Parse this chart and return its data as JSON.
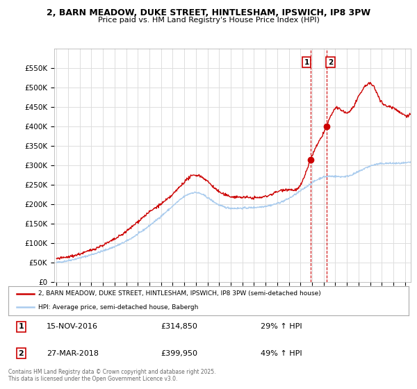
{
  "title1": "2, BARN MEADOW, DUKE STREET, HINTLESHAM, IPSWICH, IP8 3PW",
  "title2": "Price paid vs. HM Land Registry's House Price Index (HPI)",
  "background_color": "#ffffff",
  "plot_bg_color": "#ffffff",
  "grid_color": "#dddddd",
  "red_line_color": "#cc0000",
  "blue_line_color": "#aaccee",
  "marker1_date_x": 2016.87,
  "marker2_date_x": 2018.24,
  "marker1_y": 314850,
  "marker2_y": 399950,
  "sale1_label": "15-NOV-2016",
  "sale1_price": "£314,850",
  "sale1_hpi": "29% ↑ HPI",
  "sale2_label": "27-MAR-2018",
  "sale2_price": "£399,950",
  "sale2_hpi": "49% ↑ HPI",
  "legend1": "2, BARN MEADOW, DUKE STREET, HINTLESHAM, IPSWICH, IP8 3PW (semi-detached house)",
  "legend2": "HPI: Average price, semi-detached house, Babergh",
  "footer": "Contains HM Land Registry data © Crown copyright and database right 2025.\nThis data is licensed under the Open Government Licence v3.0.",
  "ylim": [
    0,
    600000
  ],
  "yticks": [
    0,
    50000,
    100000,
    150000,
    200000,
    250000,
    300000,
    350000,
    400000,
    450000,
    500000,
    550000
  ],
  "xlim_start": 1994.8,
  "xlim_end": 2025.5,
  "hpi_anchors_x": [
    1995,
    1997,
    1999,
    2001,
    2003,
    2005,
    2007,
    2009,
    2011,
    2013,
    2015,
    2017,
    2018,
    2020,
    2022,
    2024,
    2025.5
  ],
  "hpi_anchors_y": [
    50000,
    62000,
    80000,
    105000,
    145000,
    195000,
    230000,
    198000,
    190000,
    195000,
    215000,
    255000,
    270000,
    272000,
    298000,
    305000,
    308000
  ],
  "prop_anchors_x": [
    1995,
    1997,
    1999,
    2001,
    2003,
    2005,
    2007,
    2009,
    2011,
    2013,
    2015,
    2016,
    2016.87,
    2017.5,
    2018.24,
    2019,
    2020,
    2021,
    2022,
    2022.5,
    2023,
    2023.5,
    2024,
    2024.5,
    2025.5
  ],
  "prop_anchors_y": [
    60000,
    72000,
    95000,
    130000,
    180000,
    225000,
    275000,
    232000,
    218000,
    220000,
    238000,
    248000,
    314850,
    355000,
    399950,
    445000,
    435000,
    475000,
    510000,
    492000,
    462000,
    452000,
    448000,
    438000,
    432000
  ]
}
